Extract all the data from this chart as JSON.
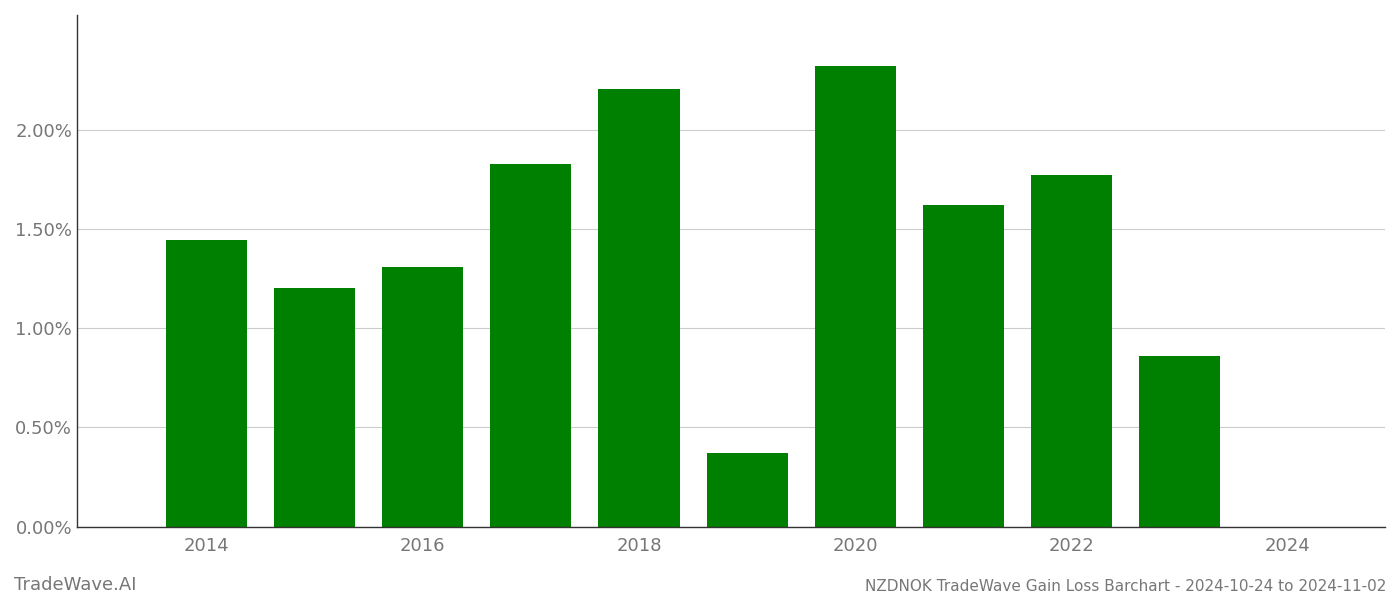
{
  "years": [
    2014,
    2015,
    2016,
    2017,
    2018,
    2019,
    2020,
    2021,
    2022,
    2023,
    2024
  ],
  "values": [
    0.01445,
    0.01205,
    0.0131,
    0.0183,
    0.02205,
    0.0037,
    0.02325,
    0.0162,
    0.01775,
    0.0086,
    null
  ],
  "bar_color": "#008000",
  "background_color": "#ffffff",
  "title": "NZDNOK TradeWave Gain Loss Barchart - 2024-10-24 to 2024-11-02",
  "watermark": "TradeWave.AI",
  "ylim": [
    0,
    0.0258
  ],
  "yticks": [
    0.0,
    0.005,
    0.01,
    0.015,
    0.02
  ],
  "ytick_labels": [
    "0.00%",
    "0.50%",
    "1.00%",
    "1.50%",
    "2.00%"
  ],
  "grid_color": "#cccccc",
  "spine_color": "#333333",
  "axis_color": "#aaaaaa",
  "tick_label_color": "#777777",
  "bar_width": 0.75,
  "title_fontsize": 11,
  "watermark_fontsize": 13,
  "tick_fontsize": 13,
  "xlim_left": 2012.8,
  "xlim_right": 2024.9,
  "xticks": [
    2014,
    2016,
    2018,
    2020,
    2022,
    2024
  ]
}
